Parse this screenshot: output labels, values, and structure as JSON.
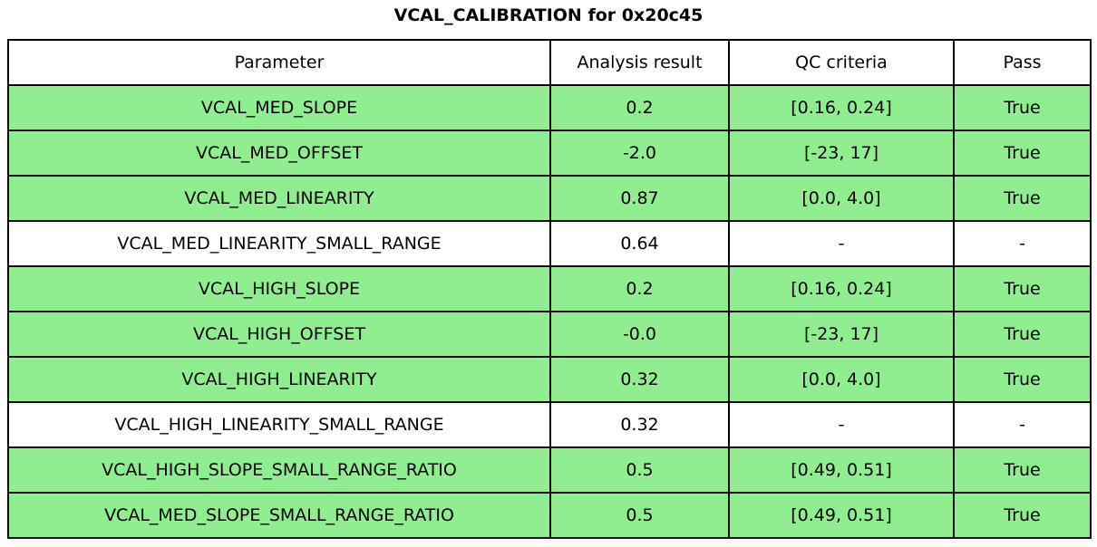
{
  "chart_data": {
    "type": "table",
    "title": "VCAL_CALIBRATION for 0x20c45",
    "columns": [
      "Parameter",
      "Analysis result",
      "QC criteria",
      "Pass"
    ],
    "rows": [
      [
        "VCAL_MED_SLOPE",
        "0.2",
        "[0.16, 0.24]",
        "True"
      ],
      [
        "VCAL_MED_OFFSET",
        "-2.0",
        "[-23, 17]",
        "True"
      ],
      [
        "VCAL_MED_LINEARITY",
        "0.87",
        "[0.0, 4.0]",
        "True"
      ],
      [
        "VCAL_MED_LINEARITY_SMALL_RANGE",
        "0.64",
        "-",
        "-"
      ],
      [
        "VCAL_HIGH_SLOPE",
        "0.2",
        "[0.16, 0.24]",
        "True"
      ],
      [
        "VCAL_HIGH_OFFSET",
        "-0.0",
        "[-23, 17]",
        "True"
      ],
      [
        "VCAL_HIGH_LINEARITY",
        "0.32",
        "[0.0, 4.0]",
        "True"
      ],
      [
        "VCAL_HIGH_LINEARITY_SMALL_RANGE",
        "0.32",
        "-",
        "-"
      ],
      [
        "VCAL_HIGH_SLOPE_SMALL_RANGE_RATIO",
        "0.5",
        "[0.49, 0.51]",
        "True"
      ],
      [
        "VCAL_MED_SLOPE_SMALL_RANGE_RATIO",
        "0.5",
        "[0.49, 0.51]",
        "True"
      ]
    ],
    "row_passes": [
      true,
      true,
      true,
      false,
      true,
      true,
      true,
      false,
      true,
      true
    ],
    "legend_position": "none",
    "grid": true
  },
  "colors": {
    "pass_row_bg": "#90ee90",
    "default_row_bg": "#ffffff",
    "border": "#000000",
    "text": "#000000"
  }
}
